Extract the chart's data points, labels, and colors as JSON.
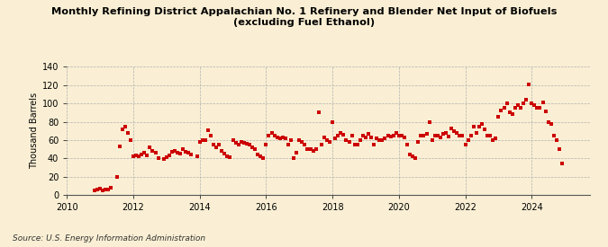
{
  "title": "Monthly Refining District Appalachian No. 1 Refinery and Blender Net Input of Biofuels\n(excluding Fuel Ethanol)",
  "ylabel": "Thousand Barrels",
  "source": "Source: U.S. Energy Information Administration",
  "background_color": "#faefd4",
  "marker_color": "#cc0000",
  "ylim": [
    0,
    140
  ],
  "yticks": [
    0,
    20,
    40,
    60,
    80,
    100,
    120,
    140
  ],
  "xlim_start": 2010.0,
  "xlim_end": 2025.75,
  "xtick_years": [
    2010,
    2012,
    2014,
    2016,
    2018,
    2020,
    2022,
    2024
  ],
  "data": [
    [
      2010.833,
      5
    ],
    [
      2010.917,
      6
    ],
    [
      2011.0,
      7
    ],
    [
      2011.083,
      5
    ],
    [
      2011.167,
      6
    ],
    [
      2011.25,
      6
    ],
    [
      2011.333,
      8
    ],
    [
      2011.5,
      20
    ],
    [
      2011.583,
      53
    ],
    [
      2011.667,
      72
    ],
    [
      2011.75,
      75
    ],
    [
      2011.833,
      68
    ],
    [
      2011.917,
      60
    ],
    [
      2012.0,
      42
    ],
    [
      2012.083,
      43
    ],
    [
      2012.167,
      42
    ],
    [
      2012.25,
      44
    ],
    [
      2012.333,
      46
    ],
    [
      2012.417,
      43
    ],
    [
      2012.5,
      52
    ],
    [
      2012.583,
      48
    ],
    [
      2012.667,
      46
    ],
    [
      2012.75,
      40
    ],
    [
      2012.917,
      39
    ],
    [
      2013.0,
      41
    ],
    [
      2013.083,
      43
    ],
    [
      2013.167,
      47
    ],
    [
      2013.25,
      48
    ],
    [
      2013.333,
      46
    ],
    [
      2013.417,
      45
    ],
    [
      2013.5,
      50
    ],
    [
      2013.583,
      47
    ],
    [
      2013.667,
      46
    ],
    [
      2013.75,
      44
    ],
    [
      2013.917,
      42
    ],
    [
      2014.0,
      58
    ],
    [
      2014.083,
      60
    ],
    [
      2014.167,
      60
    ],
    [
      2014.25,
      71
    ],
    [
      2014.333,
      65
    ],
    [
      2014.417,
      55
    ],
    [
      2014.5,
      52
    ],
    [
      2014.583,
      55
    ],
    [
      2014.667,
      48
    ],
    [
      2014.75,
      45
    ],
    [
      2014.833,
      42
    ],
    [
      2014.917,
      41
    ],
    [
      2015.0,
      60
    ],
    [
      2015.083,
      57
    ],
    [
      2015.167,
      55
    ],
    [
      2015.25,
      58
    ],
    [
      2015.333,
      57
    ],
    [
      2015.417,
      56
    ],
    [
      2015.5,
      55
    ],
    [
      2015.583,
      52
    ],
    [
      2015.667,
      50
    ],
    [
      2015.75,
      44
    ],
    [
      2015.833,
      42
    ],
    [
      2015.917,
      40
    ],
    [
      2016.0,
      55
    ],
    [
      2016.083,
      65
    ],
    [
      2016.167,
      68
    ],
    [
      2016.25,
      65
    ],
    [
      2016.333,
      63
    ],
    [
      2016.417,
      62
    ],
    [
      2016.5,
      63
    ],
    [
      2016.583,
      62
    ],
    [
      2016.667,
      55
    ],
    [
      2016.75,
      60
    ],
    [
      2016.833,
      40
    ],
    [
      2016.917,
      46
    ],
    [
      2017.0,
      60
    ],
    [
      2017.083,
      58
    ],
    [
      2017.167,
      55
    ],
    [
      2017.25,
      50
    ],
    [
      2017.333,
      50
    ],
    [
      2017.417,
      48
    ],
    [
      2017.5,
      50
    ],
    [
      2017.583,
      90
    ],
    [
      2017.667,
      55
    ],
    [
      2017.75,
      63
    ],
    [
      2017.833,
      60
    ],
    [
      2017.917,
      58
    ],
    [
      2018.0,
      80
    ],
    [
      2018.083,
      62
    ],
    [
      2018.167,
      65
    ],
    [
      2018.25,
      68
    ],
    [
      2018.333,
      66
    ],
    [
      2018.417,
      60
    ],
    [
      2018.5,
      58
    ],
    [
      2018.583,
      65
    ],
    [
      2018.667,
      55
    ],
    [
      2018.75,
      55
    ],
    [
      2018.833,
      60
    ],
    [
      2018.917,
      65
    ],
    [
      2019.0,
      63
    ],
    [
      2019.083,
      67
    ],
    [
      2019.167,
      63
    ],
    [
      2019.25,
      55
    ],
    [
      2019.333,
      62
    ],
    [
      2019.417,
      60
    ],
    [
      2019.5,
      60
    ],
    [
      2019.583,
      62
    ],
    [
      2019.667,
      65
    ],
    [
      2019.75,
      64
    ],
    [
      2019.833,
      65
    ],
    [
      2019.917,
      68
    ],
    [
      2020.0,
      65
    ],
    [
      2020.083,
      65
    ],
    [
      2020.167,
      63
    ],
    [
      2020.25,
      55
    ],
    [
      2020.333,
      44
    ],
    [
      2020.417,
      42
    ],
    [
      2020.5,
      40
    ],
    [
      2020.583,
      58
    ],
    [
      2020.667,
      65
    ],
    [
      2020.75,
      65
    ],
    [
      2020.833,
      67
    ],
    [
      2020.917,
      80
    ],
    [
      2021.0,
      60
    ],
    [
      2021.083,
      65
    ],
    [
      2021.167,
      65
    ],
    [
      2021.25,
      63
    ],
    [
      2021.333,
      67
    ],
    [
      2021.417,
      68
    ],
    [
      2021.5,
      64
    ],
    [
      2021.583,
      73
    ],
    [
      2021.667,
      70
    ],
    [
      2021.75,
      68
    ],
    [
      2021.833,
      65
    ],
    [
      2021.917,
      65
    ],
    [
      2022.0,
      55
    ],
    [
      2022.083,
      60
    ],
    [
      2022.167,
      65
    ],
    [
      2022.25,
      75
    ],
    [
      2022.333,
      68
    ],
    [
      2022.417,
      75
    ],
    [
      2022.5,
      78
    ],
    [
      2022.583,
      72
    ],
    [
      2022.667,
      65
    ],
    [
      2022.75,
      65
    ],
    [
      2022.833,
      60
    ],
    [
      2022.917,
      62
    ],
    [
      2023.0,
      85
    ],
    [
      2023.083,
      92
    ],
    [
      2023.167,
      95
    ],
    [
      2023.25,
      100
    ],
    [
      2023.333,
      90
    ],
    [
      2023.417,
      88
    ],
    [
      2023.5,
      95
    ],
    [
      2023.583,
      98
    ],
    [
      2023.667,
      95
    ],
    [
      2023.75,
      100
    ],
    [
      2023.833,
      104
    ],
    [
      2023.917,
      121
    ],
    [
      2024.0,
      100
    ],
    [
      2024.083,
      98
    ],
    [
      2024.167,
      95
    ],
    [
      2024.25,
      95
    ],
    [
      2024.333,
      101
    ],
    [
      2024.417,
      91
    ],
    [
      2024.5,
      80
    ],
    [
      2024.583,
      78
    ],
    [
      2024.667,
      65
    ],
    [
      2024.75,
      60
    ],
    [
      2024.833,
      50
    ],
    [
      2024.917,
      35
    ]
  ]
}
